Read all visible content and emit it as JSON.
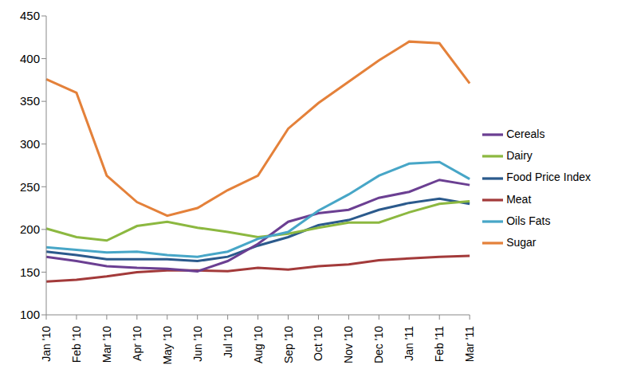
{
  "chart_data": {
    "type": "line",
    "categories": [
      "Jan '10",
      "Feb '10",
      "Mar '10",
      "Apr '10",
      "May '10",
      "Jun '10",
      "Jul '10",
      "Aug '10",
      "Sep '10",
      "Oct '10",
      "Nov '10",
      "Dec '10",
      "Jan '11",
      "Feb '11",
      "Mar '11"
    ],
    "series": [
      {
        "name": "Food Price Index",
        "color": "#2b5a8c",
        "values": [
          174,
          170,
          165,
          165,
          165,
          163,
          168,
          181,
          191,
          205,
          211,
          223,
          231,
          236,
          230
        ]
      },
      {
        "name": "Meat",
        "color": "#a33a3a",
        "values": [
          139,
          141,
          145,
          150,
          152,
          152,
          151,
          155,
          153,
          157,
          159,
          164,
          166,
          168,
          169
        ]
      },
      {
        "name": "Dairy",
        "color": "#8cb840",
        "values": [
          201,
          191,
          187,
          204,
          209,
          202,
          197,
          191,
          195,
          202,
          208,
          208,
          220,
          230,
          233
        ]
      },
      {
        "name": "Cereals",
        "color": "#6b3f92",
        "values": [
          168,
          163,
          157,
          155,
          154,
          151,
          163,
          183,
          209,
          219,
          223,
          237,
          244,
          258,
          252
        ]
      },
      {
        "name": "Oils Fats",
        "color": "#47a6c7",
        "values": [
          179,
          176,
          173,
          174,
          170,
          168,
          174,
          189,
          197,
          222,
          241,
          263,
          277,
          279,
          259
        ]
      },
      {
        "name": "Sugar",
        "color": "#e4813a",
        "values": [
          376,
          360,
          263,
          232,
          216,
          225,
          246,
          263,
          318,
          348,
          373,
          398,
          420,
          418,
          371
        ]
      }
    ],
    "ylim": [
      100,
      450
    ],
    "yticks": [
      100,
      150,
      200,
      250,
      300,
      350,
      400,
      450
    ],
    "grid": false,
    "legend": "right"
  }
}
